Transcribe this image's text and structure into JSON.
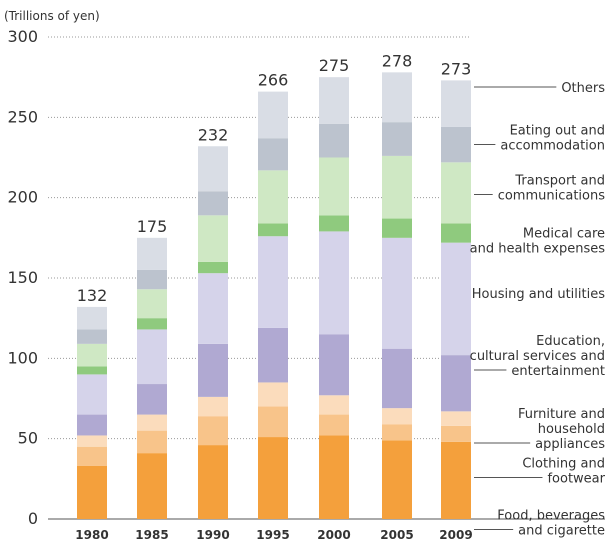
{
  "chart_data": {
    "type": "stacked_bar",
    "y_axis_label": "(Trillions of yen)",
    "categories": [
      "1980",
      "1985",
      "1990",
      "1995",
      "2000",
      "2005",
      "2009"
    ],
    "totals": [
      132,
      175,
      232,
      266,
      275,
      278,
      273
    ],
    "series": [
      {
        "name": "Food, beverages\nand cigarette",
        "color": "#f4a03c",
        "values": [
          33,
          41,
          46,
          51,
          52,
          49,
          48
        ]
      },
      {
        "name": "Clothing and\nfootwear",
        "color": "#f8c48a",
        "values": [
          12,
          14,
          18,
          19,
          13,
          10,
          10
        ]
      },
      {
        "name": "Furniture and\nhousehold\nappliances",
        "color": "#fbdcbc",
        "values": [
          7,
          10,
          12,
          15,
          12,
          10,
          9
        ]
      },
      {
        "name": "Education,\ncultural services and\nentertainment",
        "color": "#b0a9d2",
        "values": [
          13,
          19,
          33,
          34,
          38,
          37,
          35
        ]
      },
      {
        "name": "Housing and utilities",
        "color": "#d5d3ea",
        "values": [
          25,
          34,
          44,
          57,
          64,
          69,
          70
        ]
      },
      {
        "name": "Medical care\nand health expenses",
        "color": "#8fca7e",
        "values": [
          5,
          7,
          7,
          8,
          10,
          12,
          12
        ]
      },
      {
        "name": "Transport and\ncommunications",
        "color": "#cfe8c4",
        "values": [
          14,
          18,
          29,
          33,
          36,
          39,
          38
        ]
      },
      {
        "name": "Eating out and\naccommodation",
        "color": "#bcc3ce",
        "values": [
          9,
          12,
          15,
          20,
          21,
          21,
          22
        ]
      },
      {
        "name": "Others",
        "color": "#d9dde5",
        "values": [
          14,
          20,
          28,
          29,
          29,
          31,
          29
        ]
      }
    ],
    "ylim": [
      0,
      300
    ],
    "yticks": [
      0,
      50,
      100,
      150,
      200,
      250,
      300
    ],
    "grid": true
  }
}
